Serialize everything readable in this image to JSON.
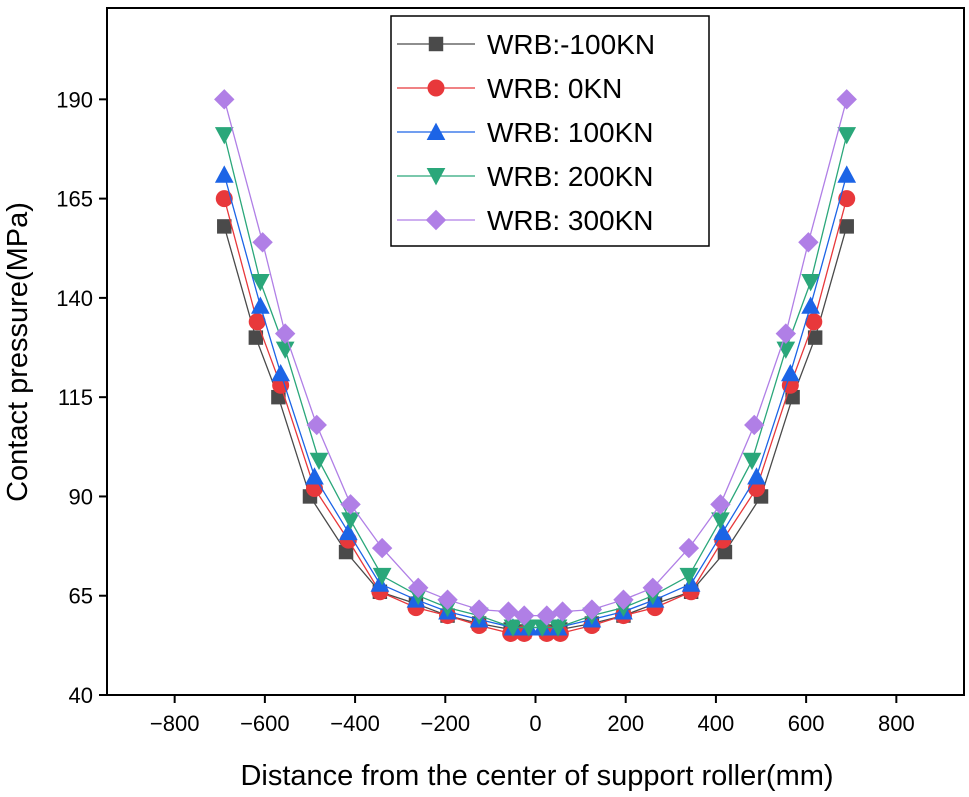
{
  "chart_data": {
    "type": "line",
    "title": "",
    "xlabel": "Distance from the center of support roller(mm)",
    "ylabel": "Contact pressure(MPa)",
    "xlim": [
      -950,
      950
    ],
    "ylim": [
      40,
      213
    ],
    "xticks": [
      -800,
      -600,
      -400,
      -200,
      0,
      200,
      400,
      600,
      800
    ],
    "yticks": [
      40,
      65,
      90,
      115,
      140,
      165,
      190
    ],
    "xtick_labels": [
      "−800",
      "−600",
      "−400",
      "−200",
      "0",
      "200",
      "400",
      "600",
      "800"
    ],
    "ytick_labels": [
      "40",
      "65",
      "90",
      "115",
      "140",
      "165",
      "190"
    ],
    "grid": false,
    "legend_position": "top-center",
    "series": [
      {
        "name": "WRB:-100KN",
        "color": "#4a4a4a",
        "marker": "square",
        "x": [
          -690,
          -620,
          -570,
          -500,
          -420,
          -345,
          -265,
          -195,
          -125,
          -55,
          -25,
          25,
          55,
          125,
          195,
          265,
          345,
          420,
          500,
          570,
          620,
          690
        ],
        "y": [
          158,
          130,
          115,
          90,
          76,
          66,
          63,
          60,
          58,
          56.5,
          56,
          56,
          56.5,
          58,
          60,
          63,
          66,
          76,
          90,
          115,
          130,
          158
        ]
      },
      {
        "name": "WRB: 0KN",
        "color": "#e8383b",
        "marker": "circle",
        "x": [
          -690,
          -617,
          -565,
          -490,
          -415,
          -345,
          -265,
          -195,
          -125,
          -55,
          -25,
          25,
          55,
          125,
          195,
          265,
          345,
          415,
          490,
          565,
          617,
          690
        ],
        "y": [
          165,
          134,
          118,
          92,
          79,
          66,
          62,
          60,
          57.5,
          55.5,
          55.5,
          55.5,
          55.5,
          57.5,
          60,
          62,
          66,
          79,
          92,
          118,
          134,
          165
        ]
      },
      {
        "name": "WRB: 100KN",
        "color": "#1c64e6",
        "marker": "triangle-up",
        "x": [
          -690,
          -610,
          -565,
          -490,
          -415,
          -345,
          -265,
          -195,
          -125,
          -50,
          -15,
          15,
          50,
          125,
          195,
          265,
          345,
          415,
          490,
          565,
          610,
          690
        ],
        "y": [
          171,
          138,
          121,
          95,
          81,
          68,
          64,
          61,
          59,
          57,
          57,
          57,
          57,
          59,
          61,
          64,
          68,
          81,
          95,
          121,
          138,
          171
        ]
      },
      {
        "name": "WRB: 200KN",
        "color": "#2aa77a",
        "marker": "triangle-down",
        "x": [
          -690,
          -610,
          -555,
          -480,
          -410,
          -340,
          -260,
          -195,
          -125,
          -50,
          -15,
          15,
          50,
          125,
          195,
          260,
          340,
          410,
          480,
          555,
          610,
          690
        ],
        "y": [
          181,
          144,
          127,
          99,
          84,
          70,
          65,
          62,
          60,
          57,
          57,
          57,
          57,
          60,
          62,
          65,
          70,
          84,
          99,
          127,
          144,
          181
        ]
      },
      {
        "name": "WRB: 300KN",
        "color": "#b07fe6",
        "marker": "diamond",
        "x": [
          -690,
          -605,
          -555,
          -485,
          -410,
          -340,
          -260,
          -195,
          -125,
          -60,
          -25,
          25,
          60,
          125,
          195,
          260,
          340,
          410,
          485,
          555,
          605,
          690
        ],
        "y": [
          190,
          154,
          131,
          108,
          88,
          77,
          67,
          64,
          61.5,
          61,
          60,
          60,
          61,
          61.5,
          64,
          67,
          77,
          88,
          108,
          131,
          154,
          190
        ]
      }
    ]
  }
}
